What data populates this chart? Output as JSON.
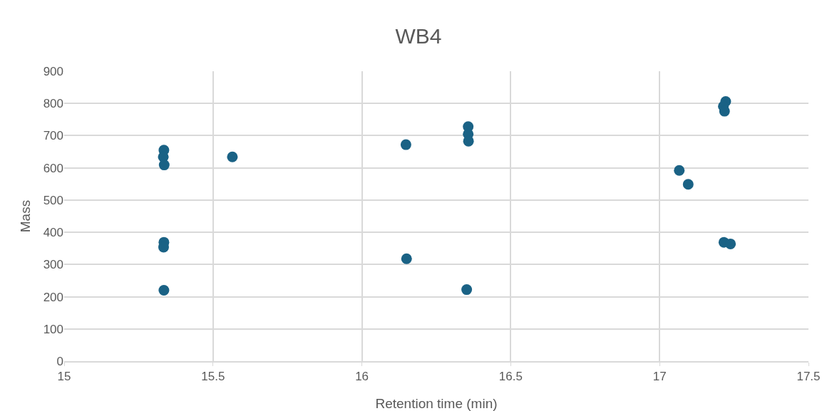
{
  "chart_data": {
    "type": "scatter",
    "title": "WB4",
    "xlabel": "Retention time (min)",
    "ylabel": "Mass",
    "x": [
      15.335,
      15.333,
      15.336,
      15.335,
      15.334,
      15.335,
      15.565,
      16.148,
      16.15,
      16.357,
      16.357,
      16.358,
      16.352,
      17.066,
      17.096,
      17.222,
      17.214,
      17.218,
      17.216,
      17.238
    ],
    "series": [
      {
        "color": "#1a6285",
        "values": [
          655,
          634,
          609,
          369,
          354,
          220,
          634,
          672,
          318,
          728,
          705,
          683,
          222,
          592,
          549,
          806,
          791,
          776,
          369,
          364
        ]
      }
    ],
    "xlim": [
      15,
      17.5
    ],
    "xticks": [
      15,
      15.5,
      16,
      16.5,
      17,
      17.5
    ],
    "ylim": [
      0,
      900
    ],
    "yticks": [
      0,
      100,
      200,
      300,
      400,
      500,
      600,
      700,
      800,
      900
    ],
    "grid": true,
    "marker": "circle"
  }
}
